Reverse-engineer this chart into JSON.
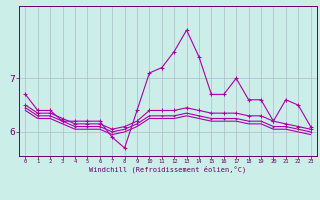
{
  "xlabel": "Windchill (Refroidissement éolien,°C)",
  "background_color": "#cceee8",
  "grid_color": "#b0b8cc",
  "line_color": "#aa00aa",
  "hours": [
    0,
    1,
    2,
    3,
    4,
    5,
    6,
    7,
    8,
    9,
    10,
    11,
    12,
    13,
    14,
    15,
    16,
    17,
    18,
    19,
    20,
    21,
    22,
    23
  ],
  "series1": [
    6.7,
    6.4,
    6.4,
    6.2,
    6.2,
    6.2,
    6.2,
    5.9,
    5.7,
    6.4,
    7.1,
    7.2,
    7.5,
    7.9,
    7.4,
    6.7,
    6.7,
    7.0,
    6.6,
    6.6,
    6.2,
    6.6,
    6.5,
    6.1
  ],
  "series2": [
    6.5,
    6.35,
    6.35,
    6.25,
    6.15,
    6.15,
    6.15,
    6.05,
    6.1,
    6.2,
    6.4,
    6.4,
    6.4,
    6.45,
    6.4,
    6.35,
    6.35,
    6.35,
    6.3,
    6.3,
    6.2,
    6.15,
    6.1,
    6.05
  ],
  "series3": [
    6.45,
    6.3,
    6.3,
    6.2,
    6.1,
    6.1,
    6.1,
    6.0,
    6.05,
    6.15,
    6.3,
    6.3,
    6.3,
    6.35,
    6.3,
    6.25,
    6.25,
    6.25,
    6.2,
    6.2,
    6.1,
    6.1,
    6.05,
    6.0
  ],
  "series4": [
    6.4,
    6.25,
    6.25,
    6.15,
    6.05,
    6.05,
    6.05,
    5.95,
    6.0,
    6.1,
    6.25,
    6.25,
    6.25,
    6.3,
    6.25,
    6.2,
    6.2,
    6.2,
    6.15,
    6.15,
    6.05,
    6.05,
    6.0,
    5.95
  ],
  "ylim": [
    5.55,
    8.35
  ],
  "yticks": [
    6,
    7
  ],
  "xlim": [
    -0.5,
    23.5
  ]
}
